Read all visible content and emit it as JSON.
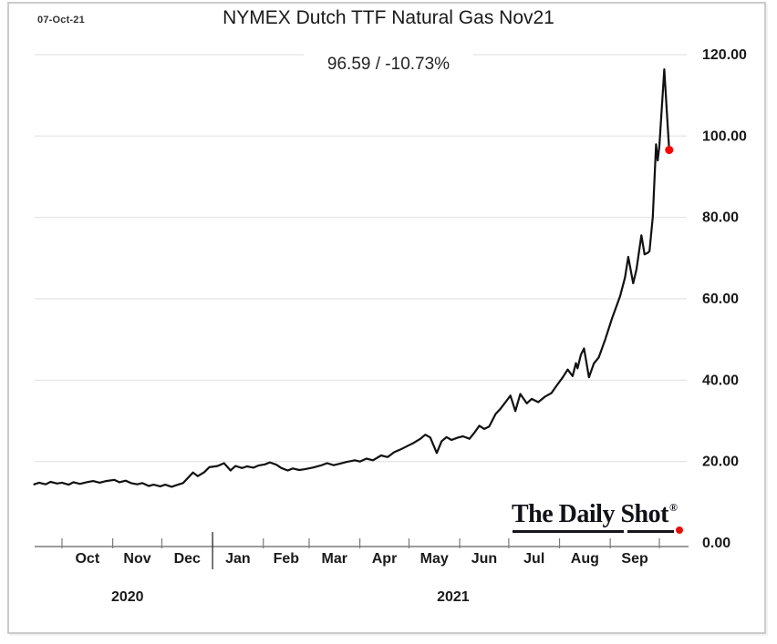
{
  "header": {
    "date_label": "07-Oct-21",
    "title": "NYMEX Dutch TTF Natural Gas Nov21",
    "subtitle": "96.59  /  -10.73%"
  },
  "watermark": {
    "text": "The Daily Shot",
    "registered": "®"
  },
  "colors": {
    "line": "#111111",
    "marker": "#ff0000",
    "grid": "#e3e3e3",
    "axis": "#7a7a7a",
    "tick": "#7a7a7a",
    "separator": "#3c3c3c",
    "text": "#1a1a1a",
    "frame": "#cbcbcb"
  },
  "chart_data": {
    "type": "line",
    "title": "NYMEX Dutch TTF Natural Gas Nov21",
    "as_of_date": "07-Oct-21",
    "last_price": 96.59,
    "change_percent": -10.73,
    "xlabel": "",
    "ylabel": "",
    "ylim": [
      0,
      120
    ],
    "grid": "horizontal",
    "legend": "none",
    "y_ticks": [
      0,
      20,
      40,
      60,
      80,
      100,
      120
    ],
    "y_tick_labels": [
      "0.00",
      "20.00",
      "40.00",
      "60.00",
      "80.00",
      "100.00",
      "120.00"
    ],
    "x_months": [
      {
        "label": "Oct",
        "start": "2020-10-01"
      },
      {
        "label": "Nov",
        "start": "2020-11-01"
      },
      {
        "label": "Dec",
        "start": "2020-12-01"
      },
      {
        "label": "Jan",
        "start": "2021-01-01"
      },
      {
        "label": "Feb",
        "start": "2021-02-01"
      },
      {
        "label": "Mar",
        "start": "2021-03-01"
      },
      {
        "label": "Apr",
        "start": "2021-04-01"
      },
      {
        "label": "May",
        "start": "2021-05-01"
      },
      {
        "label": "Jun",
        "start": "2021-06-01"
      },
      {
        "label": "Jul",
        "start": "2021-07-01"
      },
      {
        "label": "Aug",
        "start": "2021-08-01"
      },
      {
        "label": "Sep",
        "start": "2021-09-01"
      }
    ],
    "axis_end_tick": "2021-10-01",
    "year_separator": "2021-01-01",
    "year_labels": [
      {
        "text": "2020",
        "anchor": "2020-11-10"
      },
      {
        "text": "2021",
        "anchor": "2021-05-28"
      }
    ],
    "series": [
      {
        "name": "NYMEX Dutch TTF Natural Gas Nov21 price",
        "points": [
          [
            "2020-09-14",
            14.4
          ],
          [
            "2020-09-17",
            14.8
          ],
          [
            "2020-09-21",
            14.4
          ],
          [
            "2020-09-24",
            15.0
          ],
          [
            "2020-09-28",
            14.6
          ],
          [
            "2020-10-01",
            14.8
          ],
          [
            "2020-10-05",
            14.3
          ],
          [
            "2020-10-08",
            14.9
          ],
          [
            "2020-10-12",
            14.5
          ],
          [
            "2020-10-16",
            14.9
          ],
          [
            "2020-10-20",
            15.2
          ],
          [
            "2020-10-24",
            14.8
          ],
          [
            "2020-10-28",
            15.2
          ],
          [
            "2020-11-02",
            15.5
          ],
          [
            "2020-11-05",
            14.9
          ],
          [
            "2020-11-09",
            15.3
          ],
          [
            "2020-11-12",
            14.7
          ],
          [
            "2020-11-16",
            14.4
          ],
          [
            "2020-11-19",
            14.7
          ],
          [
            "2020-11-23",
            14.0
          ],
          [
            "2020-11-26",
            14.3
          ],
          [
            "2020-11-30",
            13.9
          ],
          [
            "2020-12-03",
            14.3
          ],
          [
            "2020-12-07",
            13.8
          ],
          [
            "2020-12-10",
            14.2
          ],
          [
            "2020-12-14",
            14.7
          ],
          [
            "2020-12-17",
            16.0
          ],
          [
            "2020-12-20",
            17.3
          ],
          [
            "2020-12-23",
            16.4
          ],
          [
            "2020-12-27",
            17.4
          ],
          [
            "2020-12-30",
            18.6
          ],
          [
            "2021-01-04",
            18.9
          ],
          [
            "2021-01-08",
            19.6
          ],
          [
            "2021-01-12",
            17.8
          ],
          [
            "2021-01-15",
            18.9
          ],
          [
            "2021-01-19",
            18.4
          ],
          [
            "2021-01-22",
            18.8
          ],
          [
            "2021-01-26",
            18.5
          ],
          [
            "2021-01-29",
            19.0
          ],
          [
            "2021-02-02",
            19.3
          ],
          [
            "2021-02-05",
            19.8
          ],
          [
            "2021-02-09",
            19.2
          ],
          [
            "2021-02-12",
            18.4
          ],
          [
            "2021-02-16",
            17.8
          ],
          [
            "2021-02-19",
            18.3
          ],
          [
            "2021-02-23",
            17.9
          ],
          [
            "2021-02-26",
            18.1
          ],
          [
            "2021-03-03",
            18.5
          ],
          [
            "2021-03-08",
            19.0
          ],
          [
            "2021-03-12",
            19.6
          ],
          [
            "2021-03-16",
            19.1
          ],
          [
            "2021-03-20",
            19.5
          ],
          [
            "2021-03-24",
            19.9
          ],
          [
            "2021-03-29",
            20.3
          ],
          [
            "2021-04-01",
            20.0
          ],
          [
            "2021-04-05",
            20.7
          ],
          [
            "2021-04-09",
            20.3
          ],
          [
            "2021-04-14",
            21.5
          ],
          [
            "2021-04-18",
            21.1
          ],
          [
            "2021-04-22",
            22.3
          ],
          [
            "2021-04-26",
            23.0
          ],
          [
            "2021-04-30",
            23.8
          ],
          [
            "2021-05-04",
            24.6
          ],
          [
            "2021-05-08",
            25.6
          ],
          [
            "2021-05-11",
            26.6
          ],
          [
            "2021-05-14",
            25.9
          ],
          [
            "2021-05-18",
            22.1
          ],
          [
            "2021-05-21",
            25.0
          ],
          [
            "2021-05-24",
            26.0
          ],
          [
            "2021-05-27",
            25.3
          ],
          [
            "2021-05-31",
            25.9
          ],
          [
            "2021-06-03",
            26.2
          ],
          [
            "2021-06-07",
            25.6
          ],
          [
            "2021-06-10",
            27.1
          ],
          [
            "2021-06-13",
            28.8
          ],
          [
            "2021-06-16",
            28.0
          ],
          [
            "2021-06-19",
            28.6
          ],
          [
            "2021-06-23",
            31.7
          ],
          [
            "2021-06-26",
            33.0
          ],
          [
            "2021-06-29",
            34.6
          ],
          [
            "2021-07-02",
            36.2
          ],
          [
            "2021-07-05",
            32.4
          ],
          [
            "2021-07-08",
            36.6
          ],
          [
            "2021-07-12",
            34.3
          ],
          [
            "2021-07-15",
            35.4
          ],
          [
            "2021-07-19",
            34.6
          ],
          [
            "2021-07-23",
            35.9
          ],
          [
            "2021-07-27",
            36.8
          ],
          [
            "2021-07-30",
            38.5
          ],
          [
            "2021-08-03",
            40.7
          ],
          [
            "2021-08-06",
            42.6
          ],
          [
            "2021-08-09",
            41.0
          ],
          [
            "2021-08-11",
            44.2
          ],
          [
            "2021-08-12",
            42.9
          ],
          [
            "2021-08-14",
            46.2
          ],
          [
            "2021-08-16",
            47.8
          ],
          [
            "2021-08-19",
            40.7
          ],
          [
            "2021-08-22",
            44.1
          ],
          [
            "2021-08-25",
            45.6
          ],
          [
            "2021-08-29",
            50.1
          ],
          [
            "2021-09-02",
            55.1
          ],
          [
            "2021-09-07",
            60.6
          ],
          [
            "2021-09-10",
            65.2
          ],
          [
            "2021-09-12",
            70.3
          ],
          [
            "2021-09-15",
            63.8
          ],
          [
            "2021-09-17",
            67.2
          ],
          [
            "2021-09-20",
            75.6
          ],
          [
            "2021-09-22",
            70.9
          ],
          [
            "2021-09-24",
            71.3
          ],
          [
            "2021-09-25",
            71.7
          ],
          [
            "2021-09-27",
            80.1
          ],
          [
            "2021-09-29",
            98.0
          ],
          [
            "2021-09-30",
            94.0
          ],
          [
            "2021-10-01",
            97.5
          ],
          [
            "2021-10-04",
            116.4
          ],
          [
            "2021-10-06",
            103.0
          ],
          [
            "2021-10-07",
            96.59
          ]
        ]
      }
    ]
  }
}
